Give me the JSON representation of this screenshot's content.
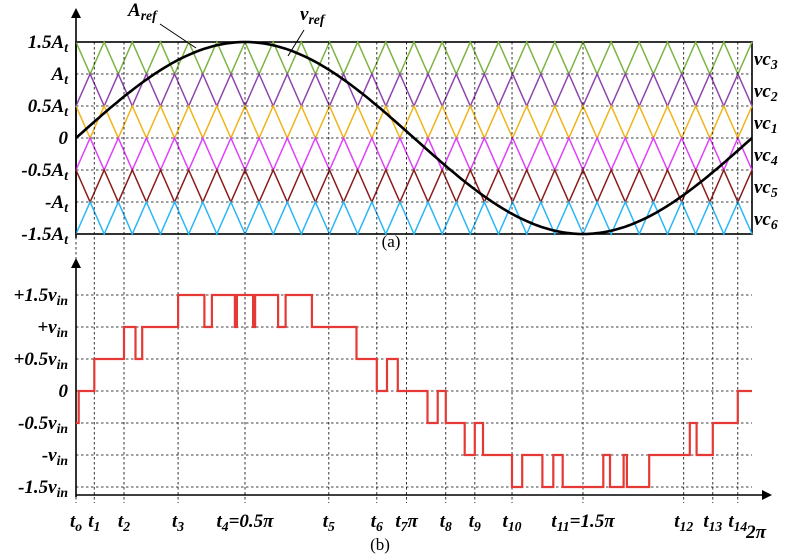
{
  "chart_data": [
    {
      "type": "line",
      "caption": "(a)",
      "ylim": [
        -1.7,
        1.7
      ],
      "y_ticks": [
        {
          "value": 1.5,
          "coef": "1.5",
          "sym": "A",
          "sub": "t"
        },
        {
          "value": 1.0,
          "coef": "",
          "sym": "A",
          "sub": "t"
        },
        {
          "value": 0.5,
          "coef": "0.5",
          "sym": "A",
          "sub": "t"
        },
        {
          "value": 0.0,
          "coef": "0",
          "sym": "",
          "sub": ""
        },
        {
          "value": -0.5,
          "coef": "-0.5",
          "sym": "A",
          "sub": "t"
        },
        {
          "value": -1.0,
          "coef": "-",
          "sym": "A",
          "sub": "t"
        },
        {
          "value": -1.5,
          "coef": "-1.5",
          "sym": "A",
          "sub": "t"
        }
      ],
      "reference": {
        "amplitude": 1.5,
        "amp_label": {
          "sym": "A",
          "sub": "ref"
        },
        "wave_label": {
          "sym": "v",
          "sub": "ref"
        },
        "color": "#000000"
      },
      "carrier_periods": 24,
      "carriers": [
        {
          "sym": "vc",
          "sub": "3",
          "min": 1.0,
          "max": 1.5,
          "color": "#7cb342",
          "phase": "peak"
        },
        {
          "sym": "vc",
          "sub": "2",
          "min": 0.5,
          "max": 1.0,
          "color": "#8e44ad",
          "phase": "valley"
        },
        {
          "sym": "vc",
          "sub": "1",
          "min": 0.0,
          "max": 0.5,
          "color": "#f0b31a",
          "phase": "peak"
        },
        {
          "sym": "vc",
          "sub": "4",
          "min": -0.5,
          "max": 0.0,
          "color": "#e040fb",
          "phase": "valley"
        },
        {
          "sym": "vc",
          "sub": "5",
          "min": -1.0,
          "max": -0.5,
          "color": "#8b1a1a",
          "phase": "peak"
        },
        {
          "sym": "vc",
          "sub": "6",
          "min": -1.5,
          "max": -1.0,
          "color": "#29b6f6",
          "phase": "valley"
        }
      ]
    },
    {
      "type": "line",
      "caption": "(b)",
      "ylim": [
        -1.7,
        1.7
      ],
      "line_color": "#e53935",
      "y_ticks": [
        {
          "value": 1.5,
          "coef": "+1.5",
          "sym": "v",
          "sub": "in"
        },
        {
          "value": 1.0,
          "coef": "+",
          "sym": "v",
          "sub": "in"
        },
        {
          "value": 0.5,
          "coef": "+0.5",
          "sym": "v",
          "sub": "in"
        },
        {
          "value": 0.0,
          "coef": "0",
          "sym": "",
          "sub": ""
        },
        {
          "value": -0.5,
          "coef": "-0.5",
          "sym": "v",
          "sub": "in"
        },
        {
          "value": -1.0,
          "coef": "-",
          "sym": "v",
          "sub": "in"
        },
        {
          "value": -1.5,
          "coef": "-1.5",
          "sym": "v",
          "sub": "in"
        }
      ],
      "x_ticks": [
        {
          "x": 0.0,
          "base": "t",
          "sub": "o",
          "suffix": ""
        },
        {
          "x": 0.027,
          "base": "t",
          "sub": "1",
          "suffix": ""
        },
        {
          "x": 0.071,
          "base": "t",
          "sub": "2",
          "suffix": ""
        },
        {
          "x": 0.151,
          "base": "t",
          "sub": "3",
          "suffix": ""
        },
        {
          "x": 0.25,
          "base": "t",
          "sub": "4",
          "suffix": "=0.5π"
        },
        {
          "x": 0.374,
          "base": "t",
          "sub": "5",
          "suffix": ""
        },
        {
          "x": 0.445,
          "base": "t",
          "sub": "6",
          "suffix": ""
        },
        {
          "x": 0.489,
          "base": "t",
          "sub": "7",
          "suffix": "π"
        },
        {
          "x": 0.547,
          "base": "t",
          "sub": "8",
          "suffix": ""
        },
        {
          "x": 0.59,
          "base": "t",
          "sub": "9",
          "suffix": ""
        },
        {
          "x": 0.645,
          "base": "t",
          "sub": "10",
          "suffix": ""
        },
        {
          "x": 0.75,
          "base": "t",
          "sub": "11",
          "suffix": "=1.5π"
        },
        {
          "x": 0.899,
          "base": "t",
          "sub": "12",
          "suffix": ""
        },
        {
          "x": 0.942,
          "base": "t",
          "sub": "13",
          "suffix": ""
        },
        {
          "x": 0.979,
          "base": "t",
          "sub": "14",
          "suffix": ""
        }
      ],
      "end_label": "2π",
      "x_range": [
        0,
        1
      ],
      "x_unit_note": "x measured as fraction of one 2π period",
      "output_levels": [
        {
          "x": 0.0,
          "y": -0.5
        },
        {
          "x": 0.004,
          "y": 0.0
        },
        {
          "x": 0.027,
          "y": 0.5
        },
        {
          "x": 0.071,
          "y": 1.0
        },
        {
          "x": 0.088,
          "y": 0.5
        },
        {
          "x": 0.098,
          "y": 1.0
        },
        {
          "x": 0.112,
          "y": 1.0
        },
        {
          "x": 0.125,
          "y": 1.0
        },
        {
          "x": 0.151,
          "y": 1.5
        },
        {
          "x": 0.19,
          "y": 1.0
        },
        {
          "x": 0.201,
          "y": 1.5
        },
        {
          "x": 0.235,
          "y": 1.0
        },
        {
          "x": 0.238,
          "y": 1.5
        },
        {
          "x": 0.262,
          "y": 1.0
        },
        {
          "x": 0.265,
          "y": 1.5
        },
        {
          "x": 0.299,
          "y": 1.0
        },
        {
          "x": 0.31,
          "y": 1.5
        },
        {
          "x": 0.349,
          "y": 1.0
        },
        {
          "x": 0.374,
          "y": 1.0
        },
        {
          "x": 0.415,
          "y": 0.5
        },
        {
          "x": 0.445,
          "y": 0.0
        },
        {
          "x": 0.46,
          "y": 0.5
        },
        {
          "x": 0.476,
          "y": 0.0
        },
        {
          "x": 0.489,
          "y": 0.0
        },
        {
          "x": 0.52,
          "y": -0.5
        },
        {
          "x": 0.535,
          "y": 0.0
        },
        {
          "x": 0.547,
          "y": -0.5
        },
        {
          "x": 0.575,
          "y": -1.0
        },
        {
          "x": 0.59,
          "y": -0.5
        },
        {
          "x": 0.602,
          "y": -1.0
        },
        {
          "x": 0.645,
          "y": -1.5
        },
        {
          "x": 0.66,
          "y": -1.0
        },
        {
          "x": 0.69,
          "y": -1.5
        },
        {
          "x": 0.706,
          "y": -1.0
        },
        {
          "x": 0.72,
          "y": -1.5
        },
        {
          "x": 0.78,
          "y": -1.0
        },
        {
          "x": 0.79,
          "y": -1.5
        },
        {
          "x": 0.81,
          "y": -1.0
        },
        {
          "x": 0.815,
          "y": -1.5
        },
        {
          "x": 0.848,
          "y": -1.0
        },
        {
          "x": 0.865,
          "y": -1.0
        },
        {
          "x": 0.899,
          "y": -1.0
        },
        {
          "x": 0.908,
          "y": -0.5
        },
        {
          "x": 0.918,
          "y": -1.0
        },
        {
          "x": 0.942,
          "y": -0.5
        },
        {
          "x": 0.979,
          "y": 0.0
        },
        {
          "x": 1.0,
          "y": 0.0
        }
      ]
    }
  ]
}
